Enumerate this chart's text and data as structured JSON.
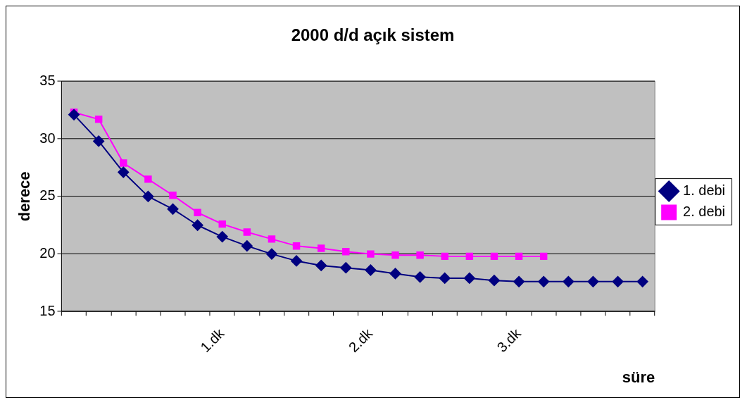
{
  "chart_data": {
    "type": "line",
    "title": "2000 d/d açık sistem",
    "xlabel": "süre",
    "ylabel": "derece",
    "categories": [
      null,
      null,
      null,
      null,
      null,
      null,
      "1.dk",
      null,
      null,
      null,
      null,
      null,
      "2.dk",
      null,
      null,
      null,
      null,
      null,
      "3.dk",
      null,
      null,
      null,
      null,
      null
    ],
    "series": [
      {
        "name": "1. debi",
        "color": "#000080",
        "marker": "diamond",
        "values": [
          32.1,
          29.8,
          27.1,
          25.0,
          23.9,
          22.5,
          21.5,
          20.7,
          20.0,
          19.4,
          19.0,
          18.8,
          18.6,
          18.3,
          18.0,
          17.9,
          17.9,
          17.7,
          17.6,
          17.6,
          17.6,
          17.6,
          17.6,
          17.6
        ]
      },
      {
        "name": "2. debi",
        "color": "#ff00ff",
        "marker": "square",
        "values": [
          32.3,
          31.7,
          27.9,
          26.5,
          25.1,
          23.6,
          22.6,
          21.9,
          21.3,
          20.7,
          20.5,
          20.2,
          20.0,
          19.9,
          19.9,
          19.8,
          19.8,
          19.8,
          19.8,
          19.8,
          null,
          null,
          null,
          null
        ]
      }
    ],
    "ylim": [
      15,
      35
    ],
    "yticks": [
      15,
      20,
      25,
      30,
      35
    ],
    "grid": "y",
    "legend": "right"
  }
}
